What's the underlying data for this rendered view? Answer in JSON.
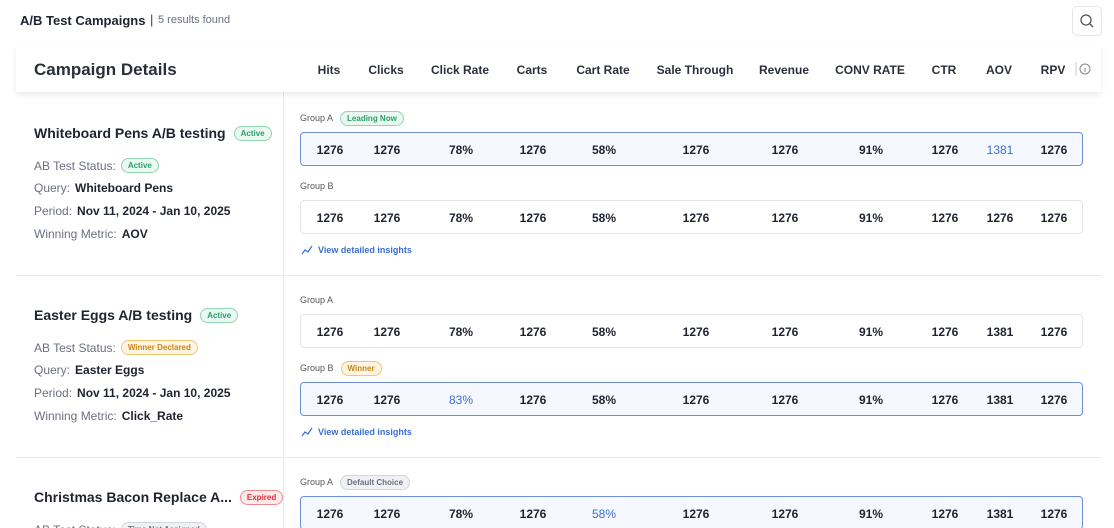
{
  "header": {
    "title": "A/B Test Campaigns",
    "results": "5 results found"
  },
  "table": {
    "title": "Campaign Details",
    "columns": [
      "Hits",
      "Clicks",
      "Click Rate",
      "Carts",
      "Cart Rate",
      "Sale Through",
      "Revenue",
      "CONV RATE",
      "CTR",
      "AOV",
      "RPV"
    ],
    "insights_label": "View detailed insights",
    "campaigns": [
      {
        "name": "Whiteboard Pens A/B testing",
        "badge": "Active",
        "tone": "green",
        "fields": [
          {
            "label": "AB Test Status:",
            "status": "Active",
            "tone": "green"
          },
          {
            "label": "Query:",
            "value": "Whiteboard Pens"
          },
          {
            "label": "Period:",
            "value": "Nov 11, 2024 - Jan 10, 2025"
          },
          {
            "label": "Winning Metric:",
            "value": "AOV"
          }
        ],
        "groups": [
          {
            "name": "Group A",
            "tag": "Leading Now",
            "tone": "green",
            "selected": true,
            "accent_index": 9,
            "values": [
              "1276",
              "1276",
              "78%",
              "1276",
              "58%",
              "1276",
              "1276",
              "91%",
              "1276",
              "1381",
              "1276"
            ]
          },
          {
            "name": "Group B",
            "values": [
              "1276",
              "1276",
              "78%",
              "1276",
              "58%",
              "1276",
              "1276",
              "91%",
              "1276",
              "1276",
              "1276"
            ]
          }
        ]
      },
      {
        "name": "Easter Eggs A/B testing",
        "badge": "Active",
        "tone": "green",
        "fields": [
          {
            "label": "AB Test Status:",
            "status": "Winner Declared",
            "tone": "orange"
          },
          {
            "label": "Query:",
            "value": "Easter Eggs"
          },
          {
            "label": "Period:",
            "value": "Nov 11, 2024 - Jan 10, 2025"
          },
          {
            "label": "Winning Metric:",
            "value": "Click_Rate"
          }
        ],
        "groups": [
          {
            "name": "Group A",
            "values": [
              "1276",
              "1276",
              "78%",
              "1276",
              "58%",
              "1276",
              "1276",
              "91%",
              "1276",
              "1381",
              "1276"
            ]
          },
          {
            "name": "Group B",
            "tag": "Winner",
            "tone": "orange",
            "selected": true,
            "accent_index": 2,
            "values": [
              "1276",
              "1276",
              "83%",
              "1276",
              "58%",
              "1276",
              "1276",
              "91%",
              "1276",
              "1381",
              "1276"
            ]
          }
        ]
      },
      {
        "name": "Christmas Bacon Replace A...",
        "badge": "Expired",
        "tone": "red",
        "fields": [
          {
            "label": "AB Test Status:",
            "status": "Time Not Assigned",
            "tone": "gray"
          }
        ],
        "groups": [
          {
            "name": "Group A",
            "tag": "Default Choice",
            "tone": "gray",
            "selected": true,
            "accent_index": 4,
            "values": [
              "1276",
              "1276",
              "78%",
              "1276",
              "58%",
              "1276",
              "1276",
              "91%",
              "1276",
              "1381",
              "1276"
            ]
          }
        ]
      }
    ]
  }
}
